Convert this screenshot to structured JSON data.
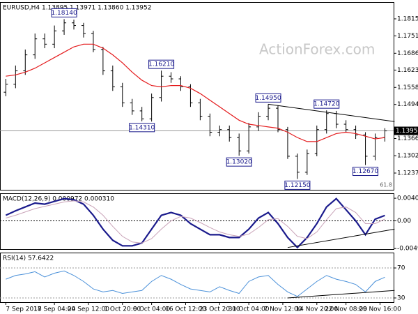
{
  "chart_data": [
    {
      "type": "ohlc",
      "title": "EURUSD,H4  1.13895 1.13971 1.13860 1.13952",
      "watermark": "ActionForex.com",
      "color": "#000000",
      "open": [
        1.154,
        1.157,
        1.162,
        1.168,
        1.174,
        1.172,
        1.177,
        1.18,
        1.179,
        1.176,
        1.17,
        1.162,
        1.156,
        1.15,
        1.147,
        1.144,
        1.152,
        1.16,
        1.159,
        1.156,
        1.15,
        1.145,
        1.139,
        1.14,
        1.137,
        1.132,
        1.141,
        1.145,
        1.148,
        1.14,
        1.13,
        1.124,
        1.131,
        1.14,
        1.146,
        1.142,
        1.14,
        1.138,
        1.13,
        1.137
      ],
      "high": [
        1.159,
        1.164,
        1.17,
        1.176,
        1.176,
        1.179,
        1.1814,
        1.1812,
        1.18,
        1.177,
        1.171,
        1.164,
        1.1575,
        1.1515,
        1.1485,
        1.1535,
        1.1621,
        1.1615,
        1.16,
        1.157,
        1.1515,
        1.146,
        1.1415,
        1.1415,
        1.1385,
        1.1425,
        1.1465,
        1.1495,
        1.149,
        1.141,
        1.131,
        1.1325,
        1.1415,
        1.1472,
        1.147,
        1.1435,
        1.1415,
        1.139,
        1.1385,
        1.1405
      ],
      "low": [
        1.1525,
        1.1555,
        1.1605,
        1.1665,
        1.1705,
        1.1705,
        1.1755,
        1.1775,
        1.1745,
        1.169,
        1.1605,
        1.1545,
        1.1485,
        1.1455,
        1.1431,
        1.143,
        1.1505,
        1.1575,
        1.1545,
        1.1485,
        1.1435,
        1.1375,
        1.1375,
        1.1355,
        1.1302,
        1.131,
        1.1395,
        1.1435,
        1.139,
        1.129,
        1.1215,
        1.123,
        1.13,
        1.1385,
        1.1405,
        1.139,
        1.1365,
        1.1267,
        1.1285,
        1.1355
      ],
      "close": [
        1.157,
        1.162,
        1.168,
        1.174,
        1.172,
        1.177,
        1.18,
        1.179,
        1.176,
        1.17,
        1.162,
        1.156,
        1.15,
        1.147,
        1.144,
        1.152,
        1.16,
        1.159,
        1.156,
        1.15,
        1.145,
        1.139,
        1.14,
        1.137,
        1.132,
        1.141,
        1.145,
        1.148,
        1.14,
        1.13,
        1.124,
        1.131,
        1.14,
        1.146,
        1.142,
        1.14,
        1.138,
        1.13,
        1.137,
        1.1395
      ],
      "ma": {
        "color": "#e41a1c",
        "values": [
          1.16,
          1.1605,
          1.1615,
          1.163,
          1.165,
          1.167,
          1.169,
          1.171,
          1.172,
          1.172,
          1.1705,
          1.168,
          1.165,
          1.1615,
          1.1585,
          1.1565,
          1.156,
          1.1565,
          1.1565,
          1.1555,
          1.1535,
          1.151,
          1.1485,
          1.146,
          1.1435,
          1.142,
          1.1415,
          1.141,
          1.1405,
          1.139,
          1.137,
          1.1355,
          1.1355,
          1.137,
          1.1385,
          1.139,
          1.1385,
          1.1375,
          1.1365,
          1.137
        ]
      },
      "last_price": 1.13952,
      "annotations": [
        {
          "label": "1.18140",
          "value": 1.1814
        },
        {
          "label": "1.16210",
          "value": 1.1621
        },
        {
          "label": "1.14310",
          "value": 1.1431
        },
        {
          "label": "1.13020",
          "value": 1.1302
        },
        {
          "label": "1.14950",
          "value": 1.1495
        },
        {
          "label": "1.12150",
          "value": 1.1215
        },
        {
          "label": "1.14720",
          "value": 1.1472
        },
        {
          "label": "1.12670",
          "value": 1.1267
        }
      ],
      "fib_label": "61.8",
      "trendlines": [
        {
          "x": [
            27,
            40
          ],
          "y": [
            1.1495,
            1.143
          ]
        }
      ],
      "xlim": [
        -0.6,
        39.9
      ],
      "ylim": [
        1.11742,
        1.18778
      ],
      "yticks": [
        {
          "value": 1.1815,
          "label": "1.18150"
        },
        {
          "value": 1.1751,
          "label": "1.17510"
        },
        {
          "value": 1.1686,
          "label": "1.16860"
        },
        {
          "value": 1.1623,
          "label": "1.16230"
        },
        {
          "value": 1.1558,
          "label": "1.15580"
        },
        {
          "value": 1.1494,
          "label": "1.14940"
        },
        1.13665,
        {
          "value": 1.1302,
          "label": "1.13020"
        },
        {
          "value": 1.1237,
          "label": "1.12370"
        }
      ]
    },
    {
      "type": "line",
      "title": "MACD(12,26,9) 0.000972 0.000310",
      "zero_line": true,
      "series": [
        {
          "color": "#1a1a8c",
          "width": 2.2,
          "values": [
            0.001,
            0.0018,
            0.0025,
            0.0032,
            0.003,
            0.0035,
            0.004,
            0.0038,
            0.003,
            0.001,
            -0.0015,
            -0.0035,
            -0.0045,
            -0.0045,
            -0.004,
            -0.0015,
            0.001,
            0.0015,
            0.001,
            -0.0005,
            -0.0015,
            -0.0025,
            -0.0025,
            -0.003,
            -0.003,
            -0.0015,
            0.0005,
            0.0015,
            -0.0005,
            -0.003,
            -0.0048,
            -0.003,
            -0.0005,
            0.0025,
            0.004,
            0.002,
            0.0,
            -0.0025,
            0.0003,
            0.00097
          ]
        },
        {
          "color": "#c9a3b8",
          "width": 1,
          "values": [
            0.0005,
            0.001,
            0.0016,
            0.0022,
            0.0026,
            0.003,
            0.0034,
            0.0036,
            0.0034,
            0.0025,
            0.001,
            -0.001,
            -0.0028,
            -0.0038,
            -0.004,
            -0.0032,
            -0.0015,
            0.0,
            0.0008,
            0.0005,
            -0.0003,
            -0.0012,
            -0.002,
            -0.0025,
            -0.0028,
            -0.0024,
            -0.0012,
            0.0002,
            0.0004,
            -0.001,
            -0.0028,
            -0.0032,
            -0.002,
            0.0002,
            0.0022,
            0.0025,
            0.0015,
            -0.0005,
            -0.0005,
            0.00031
          ]
        }
      ],
      "trendlines": [
        {
          "x": [
            29,
            40
          ],
          "y": [
            -0.0048,
            -0.0015
          ]
        }
      ],
      "xlim": [
        -0.6,
        39.9
      ],
      "ylim": [
        -0.00509,
        0.00496
      ],
      "yticks": [
        0.004069,
        {
          "value": 0,
          "label": "0.00"
        },
        -0.004981
      ]
    },
    {
      "type": "line",
      "title": "RSI(14) 57.6422",
      "grid": true,
      "series": [
        {
          "color": "#4a90d9",
          "width": 1,
          "values": [
            55,
            60,
            62,
            65,
            58,
            63,
            66,
            60,
            52,
            42,
            38,
            40,
            36,
            38,
            40,
            52,
            60,
            55,
            48,
            42,
            40,
            38,
            45,
            40,
            36,
            52,
            58,
            60,
            48,
            38,
            32,
            42,
            52,
            60,
            55,
            52,
            48,
            38,
            52,
            57.6422
          ]
        }
      ],
      "trendlines": [
        {
          "x": [
            29,
            40
          ],
          "y": [
            30,
            40
          ]
        }
      ],
      "xlim": [
        -0.6,
        39.9
      ],
      "ylim": [
        24.4,
        90.5
      ],
      "yticks": [
        70,
        30
      ],
      "xticks": [
        {
          "value": 0,
          "label": "7 Sep 2018"
        },
        {
          "value": 5,
          "label": "17 Sep 04:00"
        },
        {
          "value": 8.5,
          "label": "24 Sep 12:00"
        },
        {
          "value": 12,
          "label": "1 Oct 20:00"
        },
        {
          "value": 15,
          "label": "9 Oct 04:00"
        },
        {
          "value": 18.5,
          "label": "16 Oct 12:00"
        },
        {
          "value": 22,
          "label": "23 Oct 20:00"
        },
        {
          "value": 25,
          "label": "31 Oct 04:00"
        },
        {
          "value": 28.5,
          "label": "7 Nov 12:00"
        },
        {
          "value": 32,
          "label": "14 Nov 20:00"
        },
        {
          "value": 35,
          "label": "22 Nov 08:00"
        },
        {
          "value": 38.5,
          "label": "29 Nov 16:00"
        }
      ]
    }
  ]
}
